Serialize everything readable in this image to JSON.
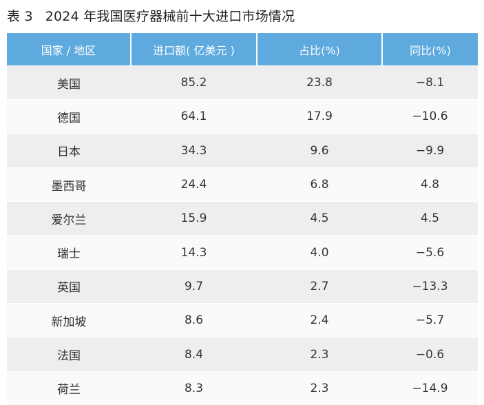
{
  "caption": {
    "number": "表 3",
    "title": "2024 年我国医疗器械前十大进口市场情况"
  },
  "table": {
    "headers": [
      "国家 / 地区",
      "进口额( 亿美元 )",
      "占比(%)",
      "同比(%)"
    ],
    "rows": [
      [
        "美国",
        "85.2",
        "23.8",
        "−8.1"
      ],
      [
        "德国",
        "64.1",
        "17.9",
        "−10.6"
      ],
      [
        "日本",
        "34.3",
        "9.6",
        "−9.9"
      ],
      [
        "墨西哥",
        "24.4",
        "6.8",
        "4.8"
      ],
      [
        "爱尔兰",
        "15.9",
        "4.5",
        "4.5"
      ],
      [
        "瑞士",
        "14.3",
        "4.0",
        "−5.6"
      ],
      [
        "英国",
        "9.7",
        "2.7",
        "−13.3"
      ],
      [
        "新加坡",
        "8.6",
        "2.4",
        "−5.7"
      ],
      [
        "法国",
        "8.4",
        "2.3",
        "−0.6"
      ],
      [
        "荷兰",
        "8.3",
        "2.3",
        "−14.9"
      ]
    ]
  },
  "colors": {
    "header_background": "#5ea9de",
    "header_text": "#ffffff",
    "row_odd_background": "#eeeeee",
    "row_even_background": "#fafafa"
  }
}
